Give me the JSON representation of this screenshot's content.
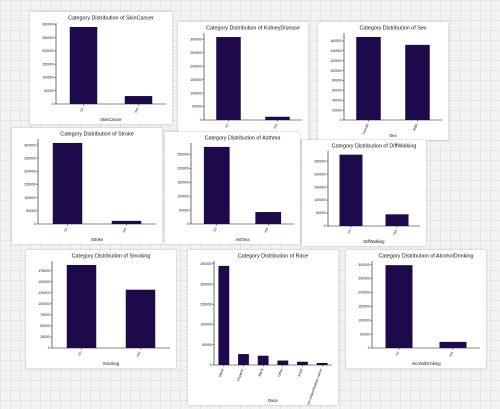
{
  "style": {
    "bar_color": "#1e0a4a",
    "background": "#f2f2f2"
  },
  "chart_data": [
    {
      "type": "bar",
      "title": "Category Distribution of SkinCancer",
      "xlabel": "SkinCancer",
      "ylabel": "",
      "categories": [
        "No",
        "Yes"
      ],
      "values": [
        290000,
        30000
      ],
      "ylim": [
        0,
        305000
      ],
      "yticks": [
        0,
        50000,
        100000,
        150000,
        200000,
        250000,
        300000
      ],
      "ytick_labels": [
        "0",
        "50000",
        "100000",
        "150000",
        "200000",
        "250000",
        "300000"
      ]
    },
    {
      "type": "bar",
      "title": "Category Distribution of KidneyDisease",
      "xlabel": "KidneyDisease",
      "ylabel": "",
      "categories": [
        "No",
        "Yes"
      ],
      "values": [
        308000,
        12000
      ],
      "ylim": [
        0,
        323000
      ],
      "yticks": [
        0,
        50000,
        100000,
        150000,
        200000,
        250000,
        300000
      ],
      "ytick_labels": [
        "0",
        "50000",
        "100000",
        "150000",
        "200000",
        "250000",
        "300000"
      ]
    },
    {
      "type": "bar",
      "title": "Category Distribution of Sex",
      "xlabel": "Sex",
      "ylabel": "",
      "categories": [
        "Female",
        "Male"
      ],
      "values": [
        168000,
        152000
      ],
      "ylim": [
        0,
        176000
      ],
      "yticks": [
        0,
        20000,
        40000,
        60000,
        80000,
        100000,
        120000,
        140000,
        160000
      ],
      "ytick_labels": [
        "0",
        "20000",
        "40000",
        "60000",
        "80000",
        "100000",
        "120000",
        "140000",
        "160000"
      ]
    },
    {
      "type": "bar",
      "title": "Category Distribution of Stroke",
      "xlabel": "Stroke",
      "ylabel": "",
      "categories": [
        "No",
        "Yes"
      ],
      "values": [
        308000,
        12000
      ],
      "ylim": [
        0,
        323000
      ],
      "yticks": [
        0,
        50000,
        100000,
        150000,
        200000,
        250000,
        300000
      ],
      "ytick_labels": [
        "0",
        "50000",
        "100000",
        "150000",
        "200000",
        "250000",
        "300000"
      ]
    },
    {
      "type": "bar",
      "title": "Category Distribution of Asthma",
      "xlabel": "Asthma",
      "ylabel": "",
      "categories": [
        "No",
        "Yes"
      ],
      "values": [
        277000,
        43000
      ],
      "ylim": [
        0,
        291000
      ],
      "yticks": [
        0,
        50000,
        100000,
        150000,
        200000,
        250000
      ],
      "ytick_labels": [
        "0",
        "50000",
        "100000",
        "150000",
        "200000",
        "250000"
      ]
    },
    {
      "type": "bar",
      "title": "Category Distribution of DiffWalking",
      "xlabel": "DiffWalking",
      "ylabel": "",
      "categories": [
        "No",
        "Yes"
      ],
      "values": [
        275000,
        45000
      ],
      "ylim": [
        0,
        289000
      ],
      "yticks": [
        0,
        50000,
        100000,
        150000,
        200000,
        250000
      ],
      "ytick_labels": [
        "0",
        "50000",
        "100000",
        "150000",
        "200000",
        "250000"
      ]
    },
    {
      "type": "bar",
      "title": "Category Distribution of Smoking",
      "xlabel": "Smoking",
      "ylabel": "",
      "categories": [
        "No",
        "Yes"
      ],
      "values": [
        188000,
        132000
      ],
      "ylim": [
        0,
        197000
      ],
      "yticks": [
        0,
        25000,
        50000,
        75000,
        100000,
        125000,
        150000,
        175000
      ],
      "ytick_labels": [
        "0",
        "25000",
        "50000",
        "75000",
        "100000",
        "125000",
        "150000",
        "175000"
      ]
    },
    {
      "type": "bar",
      "title": "Category Distribution of Race",
      "xlabel": "Race",
      "ylabel": "",
      "categories": [
        "White",
        "Hispanic",
        "Black",
        "Other",
        "Asian",
        "American Indian/Alaskan Native"
      ],
      "values": [
        245000,
        27000,
        23000,
        11000,
        8000,
        5000
      ],
      "ylim": [
        0,
        257000
      ],
      "yticks": [
        0,
        50000,
        100000,
        150000,
        200000,
        250000
      ],
      "ytick_labels": [
        "0",
        "50000",
        "100000",
        "150000",
        "200000",
        "250000"
      ]
    },
    {
      "type": "bar",
      "title": "Category Distribution of AlcoholDrinking",
      "xlabel": "AlcoholDrinking",
      "ylabel": "",
      "categories": [
        "No",
        "Yes"
      ],
      "values": [
        298000,
        22000
      ],
      "ylim": [
        0,
        313000
      ],
      "yticks": [
        0,
        50000,
        100000,
        150000,
        200000,
        250000,
        300000
      ],
      "ytick_labels": [
        "0",
        "50000",
        "100000",
        "150000",
        "200000",
        "250000",
        "300000"
      ]
    }
  ]
}
